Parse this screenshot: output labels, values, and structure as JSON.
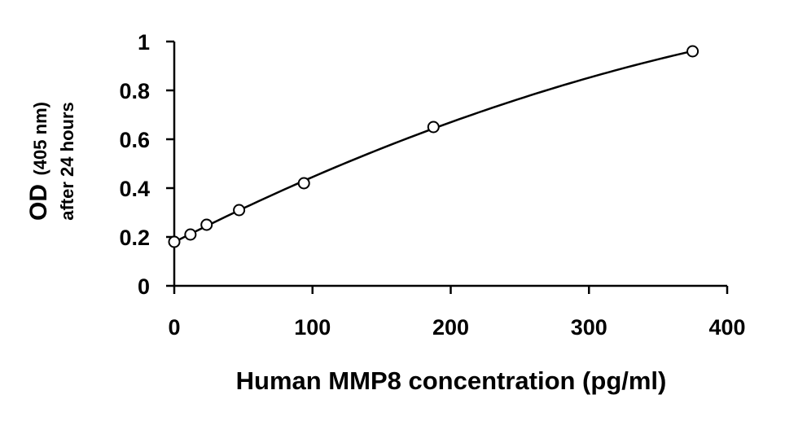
{
  "chart_data": {
    "type": "scatter",
    "xlabel": "Human MMP8 concentration (pg/ml)",
    "ylabel": {
      "line1_main": "OD",
      "line1_sub": "(405 nm)",
      "line2": "after 24 hours"
    },
    "xlim": [
      0,
      400
    ],
    "ylim": [
      0,
      1
    ],
    "x_ticks": [
      "0",
      "100",
      "200",
      "300",
      "400"
    ],
    "y_ticks": [
      "0",
      "0.2",
      "0.4",
      "0.6",
      "0.8",
      "1"
    ],
    "grid": false,
    "series": [
      {
        "marker": "open-circle",
        "points": [
          {
            "x": 0,
            "y": 0.18
          },
          {
            "x": 11.7,
            "y": 0.21
          },
          {
            "x": 23.4,
            "y": 0.25
          },
          {
            "x": 46.9,
            "y": 0.31
          },
          {
            "x": 93.8,
            "y": 0.42
          },
          {
            "x": 187.5,
            "y": 0.65
          },
          {
            "x": 375,
            "y": 0.96
          }
        ],
        "fit": "smooth-curve"
      }
    ],
    "colors": {
      "axis": "#000000",
      "marker": "#000000",
      "curve": "#000000"
    }
  }
}
